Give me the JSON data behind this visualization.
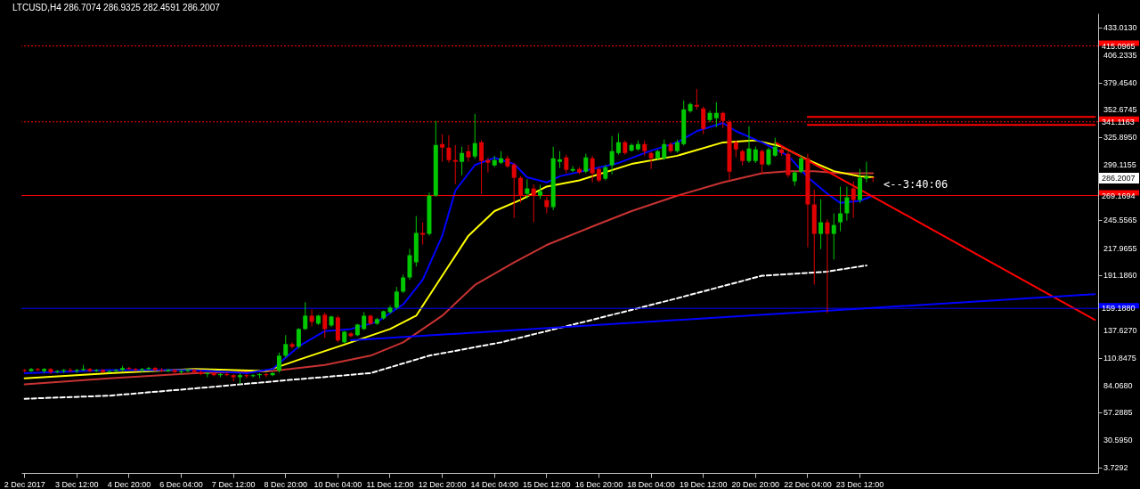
{
  "chart_data": {
    "type": "candlestick",
    "title": "LTCUSD,H4  286.7074 286.9325 282.4591 286.2007",
    "categories": [
      "2 Dec 2017",
      null,
      null,
      null,
      null,
      null,
      null,
      null,
      "3 Dec 12:00",
      null,
      null,
      null,
      null,
      null,
      null,
      null,
      "4 Dec 20:00",
      null,
      null,
      null,
      null,
      null,
      null,
      null,
      "6 Dec 04:00",
      null,
      null,
      null,
      null,
      null,
      null,
      null,
      "7 Dec 12:00",
      null,
      null,
      null,
      null,
      null,
      null,
      null,
      "8 Dec 20:00",
      null,
      null,
      null,
      null,
      null,
      null,
      null,
      "10 Dec 04:00",
      null,
      null,
      null,
      null,
      null,
      null,
      null,
      "11 Dec 12:00",
      null,
      null,
      null,
      null,
      null,
      null,
      null,
      "12 Dec 20:00",
      null,
      null,
      null,
      null,
      null,
      null,
      null,
      "14 Dec 04:00",
      null,
      null,
      null,
      null,
      null,
      null,
      null,
      "15 Dec 12:00",
      null,
      null,
      null,
      null,
      null,
      null,
      null,
      "16 Dec 20:00",
      null,
      null,
      null,
      null,
      null,
      null,
      null,
      "18 Dec 04:00",
      null,
      null,
      null,
      null,
      null,
      null,
      null,
      "19 Dec 12:00",
      null,
      null,
      null,
      null,
      null,
      null,
      null,
      "20 Dec 20:00",
      null,
      null,
      null,
      null,
      null,
      null,
      null,
      "22 Dec 04:00",
      null,
      null,
      null,
      null,
      null,
      null,
      null,
      "23 Dec 12:00",
      null,
      null,
      null,
      null,
      null,
      null,
      null,
      null,
      null,
      null,
      null,
      null,
      null,
      null,
      null,
      null,
      null,
      null,
      null,
      null,
      null,
      null,
      null,
      null,
      null,
      null,
      null,
      null,
      null,
      null,
      null,
      null,
      null,
      null,
      null,
      null
    ],
    "ohlc": [
      [
        99,
        100,
        97,
        98
      ],
      [
        98,
        101,
        97,
        100
      ],
      [
        100,
        101,
        98,
        99
      ],
      [
        98,
        101,
        96,
        100
      ],
      [
        100,
        101,
        95,
        97
      ],
      [
        97,
        99,
        96,
        98
      ],
      [
        98,
        100,
        96,
        99
      ],
      [
        99,
        101,
        97,
        98
      ],
      [
        98,
        100,
        96,
        99
      ],
      [
        99,
        104,
        98,
        100
      ],
      [
        100,
        101,
        97,
        98
      ],
      [
        98,
        100,
        97,
        99
      ],
      [
        99,
        100,
        96,
        97
      ],
      [
        97,
        99,
        96,
        98
      ],
      [
        98,
        100,
        97,
        99
      ],
      [
        99,
        103,
        98,
        101
      ],
      [
        101,
        102,
        99,
        100
      ],
      [
        100,
        101,
        98,
        99
      ],
      [
        99,
        101,
        97,
        100
      ],
      [
        100,
        102,
        99,
        101
      ],
      [
        101,
        102,
        98,
        99
      ],
      [
        99,
        101,
        97,
        98
      ],
      [
        98,
        100,
        97,
        99
      ],
      [
        99,
        100,
        96,
        97
      ],
      [
        97,
        99,
        95,
        98
      ],
      [
        98,
        100,
        97,
        99
      ],
      [
        99,
        100,
        96,
        97
      ],
      [
        97,
        99,
        94,
        95
      ],
      [
        95,
        97,
        92,
        96
      ],
      [
        96,
        97,
        93,
        94
      ],
      [
        94,
        96,
        92,
        95
      ],
      [
        95,
        97,
        93,
        94
      ],
      [
        94,
        95,
        88,
        92
      ],
      [
        92,
        96,
        85,
        94
      ],
      [
        94,
        95,
        91,
        93
      ],
      [
        93,
        95,
        92,
        94
      ],
      [
        94,
        96,
        91,
        95
      ],
      [
        95,
        96,
        92,
        94
      ],
      [
        94,
        97,
        93,
        96
      ],
      [
        98.3,
        116,
        96.5,
        113
      ],
      [
        113,
        133,
        111,
        124.3
      ],
      [
        124.3,
        126,
        120,
        121.7
      ],
      [
        121.7,
        140,
        120,
        139
      ],
      [
        139,
        165.1,
        138,
        152
      ],
      [
        152,
        158.1,
        141.6,
        146
      ],
      [
        144.2,
        153,
        143,
        152
      ],
      [
        152.9,
        155,
        130.4,
        139
      ],
      [
        142.5,
        152,
        141,
        151.2
      ],
      [
        150.3,
        152,
        126,
        127.8
      ],
      [
        126,
        137,
        125,
        136.4
      ],
      [
        134.7,
        136,
        131,
        132.1
      ],
      [
        133,
        144,
        132,
        143.4
      ],
      [
        139,
        155.5,
        138,
        152
      ],
      [
        152,
        153,
        143,
        144.2
      ],
      [
        144.2,
        150,
        143,
        148.6
      ],
      [
        149.4,
        157,
        148,
        156.4
      ],
      [
        155.5,
        162,
        154,
        159.9
      ],
      [
        159.9,
        180,
        158,
        175.5
      ],
      [
        175.5,
        192,
        174,
        189.3
      ],
      [
        189.3,
        217.1,
        187,
        211
      ],
      [
        204.1,
        249.2,
        200,
        232.7
      ],
      [
        232.7,
        243.1,
        221.4,
        230.9
      ],
      [
        231.8,
        272,
        230,
        269.1
      ],
      [
        269.1,
        342,
        268,
        318.5
      ],
      [
        319.4,
        329,
        302.1,
        315.9
      ],
      [
        315.9,
        328.1,
        301.2,
        303.8
      ],
      [
        303.8,
        318.5,
        280.4,
        302.1
      ],
      [
        302.1,
        316.8,
        289.1,
        310.7
      ],
      [
        312.5,
        318.5,
        302.1,
        306.4
      ],
      [
        307.3,
        348.9,
        305,
        320.3
      ],
      [
        321.2,
        323,
        270.9,
        302.9
      ],
      [
        303.8,
        306,
        291.7,
        301.2
      ],
      [
        298.6,
        308,
        297,
        303.8
      ],
      [
        301.2,
        312.5,
        300,
        305.5
      ],
      [
        305.5,
        308,
        296,
        297.7
      ],
      [
        299.5,
        301,
        247.4,
        286.5
      ],
      [
        286.5,
        288,
        262.2,
        269.1
      ],
      [
        270.9,
        285,
        266,
        276.1
      ],
      [
        276.1,
        280,
        243.1,
        269.1
      ],
      [
        269.1,
        279.5,
        266,
        273.5
      ],
      [
        264.8,
        268,
        251.8,
        257.9
      ],
      [
        257.9,
        316.8,
        255,
        305.5
      ],
      [
        302.1,
        312.5,
        296,
        304.5
      ],
      [
        306.4,
        309,
        291,
        294.3
      ],
      [
        293.4,
        298,
        292,
        295.1
      ],
      [
        295.1,
        297,
        290,
        291.7
      ],
      [
        292.5,
        310,
        291,
        306.4
      ],
      [
        305.5,
        308,
        282.1,
        290.8
      ],
      [
        295.1,
        297,
        282.1,
        283.9
      ],
      [
        285.6,
        299,
        284,
        296.9
      ],
      [
        298.6,
        327.2,
        289.9,
        312.5
      ],
      [
        310.7,
        329.8,
        309,
        321.2
      ],
      [
        321.2,
        322.9,
        309,
        310.7
      ],
      [
        313,
        320,
        312,
        318.5
      ],
      [
        314.2,
        322.9,
        313,
        319.4
      ],
      [
        319.4,
        322.9,
        308.1,
        312.5
      ],
      [
        310.7,
        312,
        295.1,
        305.5
      ],
      [
        305.5,
        314,
        304,
        312.5
      ],
      [
        305.5,
        323.8,
        304,
        319.4
      ],
      [
        319.4,
        321,
        311,
        312.5
      ],
      [
        312.5,
        323.8,
        311,
        321.2
      ],
      [
        319.4,
        361.9,
        318,
        353.2
      ],
      [
        351.5,
        360,
        350,
        358.4
      ],
      [
        357.6,
        373.2,
        353.2,
        355.9
      ],
      [
        354.1,
        356,
        329,
        334.2
      ],
      [
        342.8,
        352,
        341,
        349.8
      ],
      [
        344.6,
        360.2,
        335.9,
        349.8
      ],
      [
        349.8,
        351,
        335,
        342
      ],
      [
        341.1,
        343,
        283.9,
        292.5
      ],
      [
        321.2,
        323,
        306.4,
        314.2
      ],
      [
        312.5,
        314,
        298.6,
        302.9
      ],
      [
        302.9,
        336.8,
        301,
        315.1
      ],
      [
        302.9,
        317,
        301,
        314.2
      ],
      [
        312.5,
        314,
        289.9,
        299.5
      ],
      [
        299.5,
        316,
        298,
        314.2
      ],
      [
        308.1,
        325.5,
        307,
        316.8
      ],
      [
        314.2,
        318,
        308,
        310.7
      ],
      [
        309.9,
        312,
        287,
        289.1
      ],
      [
        283,
        293,
        278.7,
        291.7
      ],
      [
        292.5,
        308,
        291,
        305.5
      ],
      [
        305.5,
        310,
        218.8,
        260.5
      ],
      [
        260.5,
        275,
        182.4,
        231.8
      ],
      [
        231.8,
        265.6,
        217.1,
        243.1
      ],
      [
        243.1,
        246,
        154.7,
        231.8
      ],
      [
        231.8,
        251.8,
        206.7,
        240.5
      ],
      [
        243.1,
        277.8,
        234.4,
        251.8
      ],
      [
        251.8,
        277.8,
        244.8,
        267.4
      ],
      [
        276.1,
        283,
        247.4,
        264.8
      ],
      [
        264.8,
        295.1,
        262,
        286.5
      ],
      [
        285.6,
        302.1,
        282.1,
        287.6
      ],
      [
        286.7074,
        286.9325,
        282.4591,
        286.2007
      ],
      null,
      null,
      null,
      null,
      null,
      null,
      null,
      null,
      null,
      null,
      null,
      null,
      null,
      null,
      null,
      null,
      null,
      null,
      null,
      null,
      null,
      null,
      null,
      null,
      null,
      null,
      null,
      null,
      null,
      null,
      null,
      null,
      null,
      null
    ],
    "colors": [
      "#e00000",
      "#00c800",
      "#e00000",
      "#00c800",
      "#e00000",
      "#00c800",
      "#00c800",
      "#e00000",
      "#00c800",
      "#00c800",
      "#e00000",
      "#00c800",
      "#e00000",
      "#00c800",
      "#00c800",
      "#00c800",
      "#e00000",
      "#e00000",
      "#00c800",
      "#00c800",
      "#e00000",
      "#e00000",
      "#00c800",
      "#e00000",
      "#00c800",
      "#00c800",
      "#e00000",
      "#e00000",
      "#00c800",
      "#e00000",
      "#00c800",
      "#e00000",
      "#e00000",
      "#00c800",
      "#e00000",
      "#00c800",
      "#00c800",
      "#e00000",
      "#00c800",
      "#00c800",
      "#00c800",
      "#e00000",
      "#00c800",
      "#00c800",
      "#e00000",
      "#00c800",
      "#e00000",
      "#00c800",
      "#e00000",
      "#00c800",
      "#e00000",
      "#00c800",
      "#00c800",
      "#e00000",
      "#00c800",
      "#00c800",
      "#00c800",
      "#00c800",
      "#00c800",
      "#00c800",
      "#00c800",
      "#e00000",
      "#00c800",
      "#00c800",
      "#e00000",
      "#e00000",
      "#e00000",
      "#00c800",
      "#e00000",
      "#00c800",
      "#e00000",
      "#e00000",
      "#00c800",
      "#00c800",
      "#e00000",
      "#e00000",
      "#e00000",
      "#00c800",
      "#e00000",
      "#00c800",
      "#e00000",
      "#00c800",
      "#00c800",
      "#e00000",
      "#00c800",
      "#e00000",
      "#00c800",
      "#e00000",
      "#e00000",
      "#00c800",
      "#00c800",
      "#00c800",
      "#e00000",
      "#00c800",
      "#00c800",
      "#e00000",
      "#e00000",
      "#00c800",
      "#00c800",
      "#e00000",
      "#00c800",
      "#00c800",
      "#00c800",
      "#e00000",
      "#e00000",
      "#00c800",
      "#00c800",
      "#e00000",
      "#e00000",
      "#e00000",
      "#e00000",
      "#00c800",
      "#00c800",
      "#e00000",
      "#00c800",
      "#00c800",
      "#e00000",
      "#e00000",
      "#00c800",
      "#00c800",
      "#e00000",
      "#e00000",
      "#00c800",
      "#e00000",
      "#00c800",
      "#00c800",
      "#00c800",
      "#e00000",
      "#00c800",
      "#00c800",
      "#e00000",
      null,
      null,
      null,
      null,
      null,
      null,
      null,
      null,
      null,
      null,
      null,
      null,
      null,
      null,
      null,
      null,
      null,
      null,
      null,
      null,
      null,
      null,
      null,
      null,
      null,
      null,
      null,
      null,
      null,
      null,
      null,
      null,
      null,
      null
    ],
    "series": [
      {
        "type": "line",
        "color": "#ffffff",
        "line_style": "dashed",
        "values": [
          71,
          null,
          null,
          null,
          null,
          null,
          null,
          null,
          null,
          null,
          null,
          null,
          null,
          74,
          null,
          null,
          null,
          null,
          null,
          null,
          null,
          null,
          null,
          null,
          null,
          null,
          81,
          null,
          null,
          null,
          null,
          null,
          null,
          null,
          null,
          null,
          null,
          null,
          null,
          null,
          89,
          null,
          null,
          null,
          null,
          null,
          null,
          null,
          null,
          null,
          null,
          null,
          null,
          96,
          null,
          null,
          null,
          null,
          null,
          null,
          null,
          null,
          113,
          null,
          null,
          null,
          null,
          null,
          null,
          null,
          null,
          null,
          null,
          126,
          null,
          null,
          null,
          null,
          null,
          null,
          null,
          null,
          null,
          null,
          null,
          null,
          null,
          148,
          null,
          null,
          null,
          null,
          null,
          null,
          null,
          null,
          null,
          null,
          null,
          null,
          169,
          null,
          null,
          null,
          null,
          null,
          null,
          null,
          null,
          null,
          null,
          null,
          null,
          191,
          null,
          null,
          null,
          null,
          null,
          null,
          null,
          null,
          null,
          195,
          null,
          null,
          null,
          null,
          null,
          201,
          null,
          null,
          null,
          null,
          null,
          null,
          null,
          null,
          null,
          null,
          null,
          null,
          null,
          null,
          null,
          null,
          null,
          null,
          null,
          null,
          null,
          null,
          null,
          null,
          null,
          null,
          null,
          null,
          null,
          null,
          null,
          null,
          null,
          null,
          null
        ]
      },
      {
        "type": "line",
        "color": "#c83232",
        "line_style": "solid",
        "values": [
          85,
          null,
          null,
          null,
          null,
          null,
          null,
          null,
          null,
          null,
          null,
          null,
          null,
          91,
          null,
          null,
          null,
          null,
          null,
          null,
          null,
          null,
          null,
          null,
          null,
          null,
          96,
          null,
          null,
          null,
          null,
          null,
          null,
          null,
          null,
          null,
          null,
          null,
          98,
          null,
          null,
          null,
          null,
          null,
          null,
          null,
          104,
          null,
          null,
          null,
          null,
          null,
          null,
          113,
          null,
          null,
          null,
          null,
          126,
          null,
          null,
          null,
          null,
          null,
          152,
          null,
          null,
          null,
          null,
          182,
          null,
          null,
          null,
          null,
          null,
          204,
          null,
          null,
          null,
          null,
          221,
          null,
          null,
          null,
          null,
          null,
          null,
          239,
          null,
          null,
          null,
          null,
          null,
          254,
          null,
          null,
          null,
          null,
          null,
          null,
          269,
          null,
          null,
          null,
          null,
          null,
          null,
          282,
          null,
          null,
          null,
          null,
          null,
          291,
          null,
          null,
          null,
          293,
          null,
          null,
          null,
          293,
          null,
          null,
          null,
          291,
          null,
          null,
          null,
          null,
          291,
          null,
          null,
          null,
          null,
          null,
          null,
          null,
          null,
          null,
          null,
          null,
          null,
          null,
          null,
          null,
          null,
          null,
          null,
          null,
          null,
          null,
          null,
          null,
          null,
          null,
          null,
          null,
          null,
          null,
          null,
          null,
          null,
          null,
          null
        ]
      },
      {
        "type": "line",
        "color": "#ffff00",
        "line_style": "solid",
        "values": [
          91,
          null,
          null,
          null,
          null,
          null,
          null,
          null,
          null,
          null,
          null,
          null,
          null,
          96,
          null,
          null,
          null,
          null,
          null,
          null,
          null,
          null,
          null,
          null,
          null,
          null,
          100,
          null,
          null,
          null,
          null,
          null,
          null,
          null,
          null,
          null,
          null,
          98,
          null,
          null,
          null,
          null,
          109,
          null,
          null,
          null,
          null,
          null,
          null,
          null,
          126,
          null,
          null,
          null,
          null,
          null,
          139,
          null,
          null,
          null,
          152,
          null,
          null,
          null,
          191,
          null,
          null,
          null,
          230,
          null,
          null,
          null,
          254,
          null,
          null,
          null,
          265,
          null,
          null,
          null,
          278,
          null,
          null,
          null,
          null,
          284,
          null,
          null,
          null,
          null,
          null,
          null,
          null,
          300,
          null,
          null,
          null,
          null,
          null,
          null,
          308,
          null,
          null,
          null,
          null,
          null,
          null,
          321,
          null,
          null,
          null,
          null,
          323,
          null,
          null,
          null,
          317,
          null,
          null,
          null,
          304,
          null,
          null,
          null,
          293,
          null,
          null,
          null,
          288,
          null,
          287,
          null,
          null,
          null,
          null,
          null,
          null,
          null,
          null,
          null,
          null,
          null,
          null,
          null,
          null,
          null,
          null,
          null,
          null,
          null,
          null,
          null,
          null,
          null,
          null,
          null,
          null,
          null,
          null,
          null,
          null,
          null,
          null,
          null,
          null
        ]
      },
      {
        "type": "line",
        "color": "#0000ff",
        "line_style": "solid",
        "values": [
          96,
          null,
          null,
          null,
          null,
          null,
          null,
          null,
          null,
          null,
          null,
          null,
          null,
          99,
          null,
          null,
          null,
          null,
          null,
          null,
          null,
          null,
          null,
          null,
          null,
          null,
          99,
          null,
          null,
          null,
          null,
          null,
          null,
          null,
          96,
          null,
          null,
          null,
          100,
          null,
          null,
          null,
          122,
          null,
          null,
          null,
          137,
          null,
          null,
          null,
          139,
          null,
          null,
          null,
          146,
          null,
          null,
          null,
          163,
          null,
          null,
          187,
          null,
          null,
          230,
          null,
          274,
          null,
          null,
          299,
          null,
          null,
          306,
          null,
          null,
          300,
          null,
          287,
          null,
          null,
          282,
          null,
          288,
          null,
          null,
          null,
          null,
          295,
          null,
          null,
          null,
          301,
          null,
          null,
          null,
          null,
          313,
          null,
          null,
          null,
          321,
          null,
          null,
          332,
          null,
          null,
          null,
          340,
          null,
          332,
          null,
          null,
          null,
          321,
          null,
          null,
          null,
          308,
          null,
          null,
          287,
          null,
          null,
          271,
          null,
          262,
          null,
          null,
          264,
          null,
          269,
          null,
          null,
          null,
          null,
          null,
          null,
          null,
          null,
          null,
          null,
          null,
          null,
          null,
          null,
          null,
          null,
          null,
          null,
          null,
          null,
          null,
          null,
          null,
          null,
          null,
          null,
          null,
          null,
          null,
          null,
          null,
          null,
          null,
          null
        ]
      },
      {
        "type": "line",
        "color": "#ff0000",
        "line_style": "solid",
        "values": [
          null,
          null,
          null,
          null,
          null,
          null,
          null,
          null,
          null,
          null,
          null,
          null,
          null,
          null,
          null,
          null,
          null,
          null,
          null,
          null,
          null,
          null,
          null,
          null,
          null,
          null,
          null,
          null,
          null,
          null,
          null,
          null,
          null,
          null,
          null,
          null,
          null,
          null,
          null,
          null,
          null,
          null,
          null,
          null,
          null,
          null,
          null,
          null,
          null,
          null,
          null,
          null,
          null,
          null,
          null,
          null,
          null,
          null,
          null,
          null,
          null,
          null,
          null,
          null,
          null,
          null,
          null,
          null,
          null,
          null,
          null,
          null,
          null,
          null,
          null,
          null,
          null,
          null,
          null,
          null,
          null,
          null,
          null,
          null,
          null,
          null,
          null,
          null,
          null,
          null,
          null,
          null,
          null,
          null,
          null,
          null,
          null,
          null,
          null,
          null,
          null,
          null,
          null,
          null,
          null,
          null,
          null,
          null,
          null,
          null,
          null,
          null,
          null,
          null,
          null,
          321,
          null,
          null,
          null,
          null,
          null,
          null,
          null,
          null,
          null,
          null,
          null,
          null,
          null,
          null,
          null,
          null,
          null,
          null,
          null,
          null,
          null,
          null,
          null,
          null,
          null,
          null,
          null,
          null,
          null,
          null,
          null,
          null,
          null,
          null,
          null,
          null,
          null,
          null,
          null,
          null,
          null,
          null,
          null,
          null,
          null,
          null,
          null,
          null,
          148
        ]
      },
      {
        "type": "line",
        "color": "#0000ff",
        "line_style": "solid",
        "values": [
          null,
          null,
          null,
          null,
          null,
          null,
          null,
          null,
          null,
          null,
          null,
          null,
          null,
          null,
          null,
          null,
          null,
          null,
          null,
          null,
          null,
          null,
          null,
          null,
          null,
          null,
          null,
          null,
          null,
          null,
          null,
          null,
          null,
          null,
          null,
          null,
          null,
          null,
          null,
          null,
          null,
          null,
          null,
          null,
          null,
          null,
          null,
          null,
          null,
          null,
          128,
          null,
          null,
          null,
          null,
          null,
          null,
          null,
          null,
          null,
          null,
          null,
          null,
          null,
          null,
          null,
          null,
          null,
          null,
          null,
          null,
          null,
          null,
          null,
          null,
          null,
          null,
          null,
          null,
          null,
          null,
          null,
          null,
          null,
          null,
          null,
          null,
          null,
          null,
          null,
          null,
          null,
          null,
          null,
          null,
          null,
          null,
          null,
          null,
          null,
          null,
          null,
          null,
          null,
          null,
          null,
          null,
          null,
          null,
          null,
          null,
          null,
          null,
          null,
          null,
          null,
          null,
          null,
          null,
          null,
          null,
          null,
          null,
          null,
          null,
          null,
          null,
          null,
          null,
          null,
          null,
          null,
          null,
          null,
          null,
          null,
          null,
          null,
          null,
          null,
          null,
          null,
          null,
          null,
          null,
          null,
          null,
          null,
          null,
          null,
          null,
          null,
          null,
          null,
          null,
          null,
          null,
          null,
          null,
          null,
          null,
          null,
          null,
          null,
          173
        ]
      },
      {
        "type": "line",
        "color": "#ff0000",
        "line_style": "solid",
        "values": [
          null,
          null,
          null,
          null,
          null,
          null,
          null,
          null,
          null,
          null,
          null,
          null,
          null,
          null,
          null,
          null,
          null,
          null,
          null,
          null,
          null,
          null,
          null,
          null,
          null,
          null,
          null,
          null,
          null,
          null,
          null,
          null,
          null,
          null,
          null,
          null,
          null,
          null,
          null,
          null,
          null,
          null,
          null,
          null,
          null,
          null,
          null,
          null,
          null,
          null,
          null,
          null,
          null,
          null,
          null,
          null,
          null,
          null,
          null,
          null,
          null,
          null,
          null,
          null,
          null,
          null,
          null,
          null,
          null,
          null,
          null,
          null,
          null,
          null,
          null,
          null,
          null,
          null,
          null,
          null,
          null,
          null,
          null,
          null,
          null,
          null,
          null,
          null,
          null,
          null,
          null,
          null,
          null,
          null,
          null,
          null,
          null,
          null,
          null,
          null,
          null,
          null,
          null,
          null,
          null,
          null,
          null,
          null,
          null,
          null,
          null,
          null,
          null,
          null,
          null,
          null,
          null,
          null,
          null,
          null,
          346,
          null,
          null,
          null,
          null,
          null,
          null,
          null,
          null,
          null,
          null,
          null,
          null,
          null,
          null,
          null,
          null,
          null,
          null,
          null,
          null,
          null,
          null,
          null,
          null,
          null,
          null,
          null,
          null,
          null,
          null,
          null,
          null,
          null,
          null,
          null,
          null,
          null,
          null,
          null,
          null,
          null,
          null,
          null,
          346
        ]
      },
      {
        "type": "line",
        "color": "#ff0000",
        "line_style": "solid",
        "values": [
          null,
          null,
          null,
          null,
          null,
          null,
          null,
          null,
          null,
          null,
          null,
          null,
          null,
          null,
          null,
          null,
          null,
          null,
          null,
          null,
          null,
          null,
          null,
          null,
          null,
          null,
          null,
          null,
          null,
          null,
          null,
          null,
          null,
          null,
          null,
          null,
          null,
          null,
          null,
          null,
          null,
          null,
          null,
          null,
          null,
          null,
          null,
          null,
          null,
          null,
          null,
          null,
          null,
          null,
          null,
          null,
          null,
          null,
          null,
          null,
          null,
          null,
          null,
          null,
          null,
          null,
          null,
          null,
          null,
          null,
          null,
          null,
          null,
          null,
          null,
          null,
          null,
          null,
          null,
          null,
          null,
          null,
          null,
          null,
          null,
          null,
          null,
          null,
          null,
          null,
          null,
          null,
          null,
          null,
          null,
          null,
          null,
          null,
          null,
          null,
          null,
          null,
          null,
          null,
          null,
          null,
          null,
          null,
          null,
          null,
          null,
          null,
          null,
          null,
          null,
          null,
          null,
          null,
          null,
          null,
          338,
          null,
          null,
          null,
          null,
          null,
          null,
          null,
          null,
          null,
          null,
          null,
          null,
          null,
          null,
          null,
          null,
          null,
          null,
          null,
          null,
          null,
          null,
          null,
          null,
          null,
          null,
          null,
          null,
          null,
          null,
          null,
          null,
          null,
          null,
          null,
          null,
          null,
          null,
          null,
          null,
          null,
          null,
          null,
          338
        ]
      }
    ],
    "ylim": [
      -1.4,
      446.9
    ],
    "yticks": [
      {
        "value": 3.7292,
        "label": "3.7292"
      },
      {
        "value": 30.595,
        "label": "30.5950"
      },
      {
        "value": 57.2885,
        "label": "57.2885"
      },
      {
        "value": 84.068,
        "label": "84.0680"
      },
      {
        "value": 110.8475,
        "label": "110.8475"
      },
      {
        "value": 137.627,
        "label": "137.6270"
      },
      {
        "value": 191.186,
        "label": "191.1860"
      },
      {
        "value": 217.9655,
        "label": "217.9655"
      },
      {
        "value": 245.5565,
        "label": "245.5565"
      },
      {
        "value": 299.1155,
        "label": "299.1155"
      },
      {
        "value": 325.895,
        "label": "325.8950"
      },
      {
        "value": 352.6745,
        "label": "352.6745"
      },
      {
        "value": 379.454,
        "label": "379.4540"
      },
      {
        "value": 406.2335,
        "label": "406.2335"
      },
      {
        "value": 433.013,
        "label": "433.0130"
      }
    ],
    "ref_lines": [
      {
        "axis": "y",
        "value": 415.0965,
        "label": "415.0965",
        "color": "#ff0000",
        "line_style": "dotted"
      },
      {
        "axis": "y",
        "value": 341.1163,
        "label": "341.1163",
        "color": "#ff0000",
        "line_style": "dotted"
      },
      {
        "axis": "y",
        "value": 269.1694,
        "label": "269.1694",
        "color": "#ff0000",
        "line_style": "solid"
      },
      {
        "axis": "y",
        "value": 159.188,
        "label": "159.1880",
        "color": "#0000ff",
        "line_style": "solid"
      }
    ],
    "annotations": [
      "286.2007",
      "<--3:40:06"
    ]
  }
}
